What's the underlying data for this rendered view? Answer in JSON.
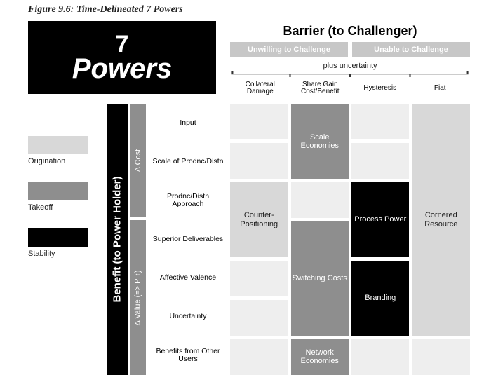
{
  "caption": "Figure 9.6: Time-Delineated 7 Powers",
  "title": {
    "line1": "7",
    "line2": "Powers"
  },
  "barrier_header": "Barrier (to Challenger)",
  "sub_headers": [
    "Unwilling to Challenge",
    "Unable to Challenge"
  ],
  "plus_label": "plus uncertainty",
  "columns": [
    "Collateral Damage",
    "Share Gain Cost/Benefit",
    "Hysteresis",
    "Fiat"
  ],
  "n_cols": 4,
  "n_rows": 7,
  "gap_pct": 1.2,
  "benefit_label": "Benefit (to Power Holder)",
  "cost_label": "Δ Cost",
  "value_label": "Δ Value (=> P ↑)",
  "row_labels": [
    "Input",
    "Scale of Prodnc/Distn",
    "Prodnc/Distn Approach",
    "Superior Deliverables",
    "Affective Valence",
    "Uncertainty",
    "Benefits from Other Users"
  ],
  "legend": [
    {
      "label": "Origination",
      "color": "#d8d8d8"
    },
    {
      "label": "Takeoff",
      "color": "#8e8e8e"
    },
    {
      "label": "Stability",
      "color": "#000000"
    }
  ],
  "colors": {
    "bg_cell": "#eeeeee",
    "origination": "#d8d8d8",
    "takeoff": "#8e8e8e",
    "stability": "#000000",
    "text_dark": "#222222",
    "text_light": "#ffffff",
    "bracket": "#333333"
  },
  "powers": [
    {
      "label": "Scale Economies",
      "col": 1,
      "row": 0,
      "colspan": 1,
      "rowspan": 2,
      "stage": "takeoff"
    },
    {
      "label": "Counter-Positioning",
      "col": 0,
      "row": 2,
      "colspan": 1,
      "rowspan": 2,
      "stage": "origination"
    },
    {
      "label": "Switching Costs",
      "col": 1,
      "row": 3,
      "colspan": 1,
      "rowspan": 3,
      "stage": "takeoff"
    },
    {
      "label": "Network Economies",
      "col": 1,
      "row": 6,
      "colspan": 1,
      "rowspan": 1,
      "stage": "takeoff"
    },
    {
      "label": "Process Power",
      "col": 2,
      "row": 2,
      "colspan": 1,
      "rowspan": 2,
      "stage": "stability"
    },
    {
      "label": "Branding",
      "col": 2,
      "row": 4,
      "colspan": 1,
      "rowspan": 2,
      "stage": "stability"
    },
    {
      "label": "Cornered Resource",
      "col": 3,
      "row": 0,
      "colspan": 1,
      "rowspan": 6,
      "stage": "origination"
    }
  ]
}
